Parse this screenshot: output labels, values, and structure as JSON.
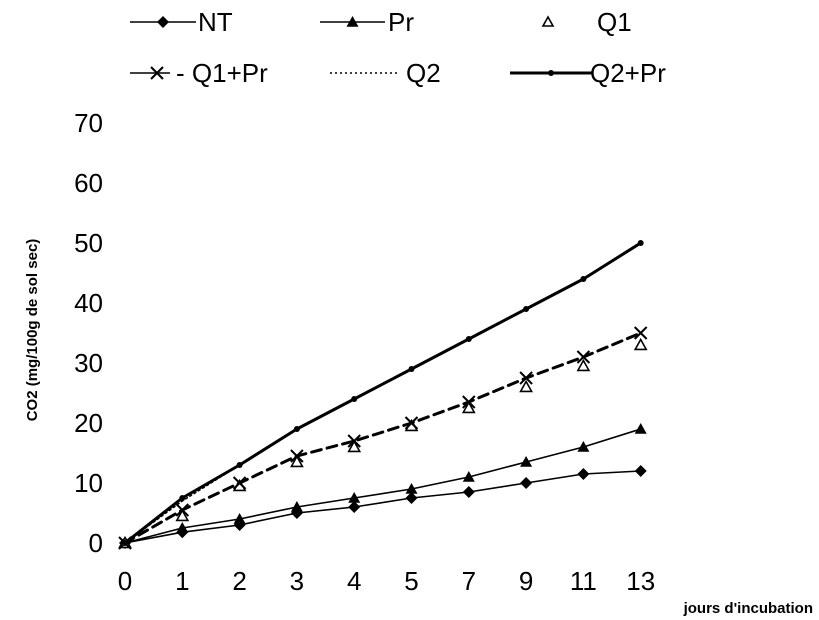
{
  "chart_data": {
    "type": "line",
    "x": [
      "0",
      "1",
      "2",
      "3",
      "4",
      "5",
      "7",
      "9",
      "11",
      "13"
    ],
    "xlabel": "jours d'incubation",
    "ylabel": "CO2 (mg/100g de sol sec)",
    "ylim": [
      0,
      70
    ],
    "yticks": [
      0,
      10,
      20,
      30,
      40,
      50,
      60,
      70
    ],
    "grid": false,
    "legend_position": "top",
    "series": [
      {
        "name": "NT",
        "marker": "diamond",
        "line": "solid",
        "color": "#000000",
        "values": [
          0,
          1.8,
          3,
          5,
          6,
          7.5,
          8.5,
          10,
          11.5,
          12
        ]
      },
      {
        "name": "Pr",
        "marker": "triangle",
        "line": "solid",
        "color": "#000000",
        "values": [
          0,
          2.5,
          4,
          6,
          7.5,
          9,
          11,
          13.5,
          16,
          19
        ]
      },
      {
        "name": "Q1",
        "marker": "open-triangle",
        "line": "none",
        "color": "#000000",
        "values": [
          0,
          4.5,
          9.5,
          13.5,
          16,
          19.5,
          22.5,
          26,
          29.5,
          33
        ]
      },
      {
        "name": "Q1+Pr",
        "marker": "x",
        "line": "dashed",
        "color": "#000000",
        "values": [
          0,
          5.5,
          10,
          14.5,
          17,
          20,
          23.5,
          27.5,
          31,
          35
        ]
      },
      {
        "name": "Q2",
        "marker": "none",
        "line": "dotted",
        "color": "#000000",
        "values": [
          0,
          7,
          13,
          19,
          24,
          29,
          34,
          39,
          44,
          50
        ]
      },
      {
        "name": "Q2+Pr",
        "marker": "dot",
        "line": "thick",
        "color": "#000000",
        "values": [
          0,
          7.5,
          13,
          19,
          24,
          29,
          34,
          39,
          44,
          50
        ]
      }
    ]
  },
  "legend": {
    "items": [
      {
        "label": "NT",
        "marker": "diamond",
        "line": "solid"
      },
      {
        "label": "Pr",
        "marker": "triangle",
        "line": "solid"
      },
      {
        "label": "Q1",
        "marker": "open-triangle",
        "line": "none"
      },
      {
        "label": "- Q1+Pr",
        "marker": "x",
        "line": "solid"
      },
      {
        "label": "Q2",
        "marker": "none",
        "line": "dotted"
      },
      {
        "label": "Q2+Pr",
        "marker": "dot",
        "line": "thick"
      }
    ]
  }
}
